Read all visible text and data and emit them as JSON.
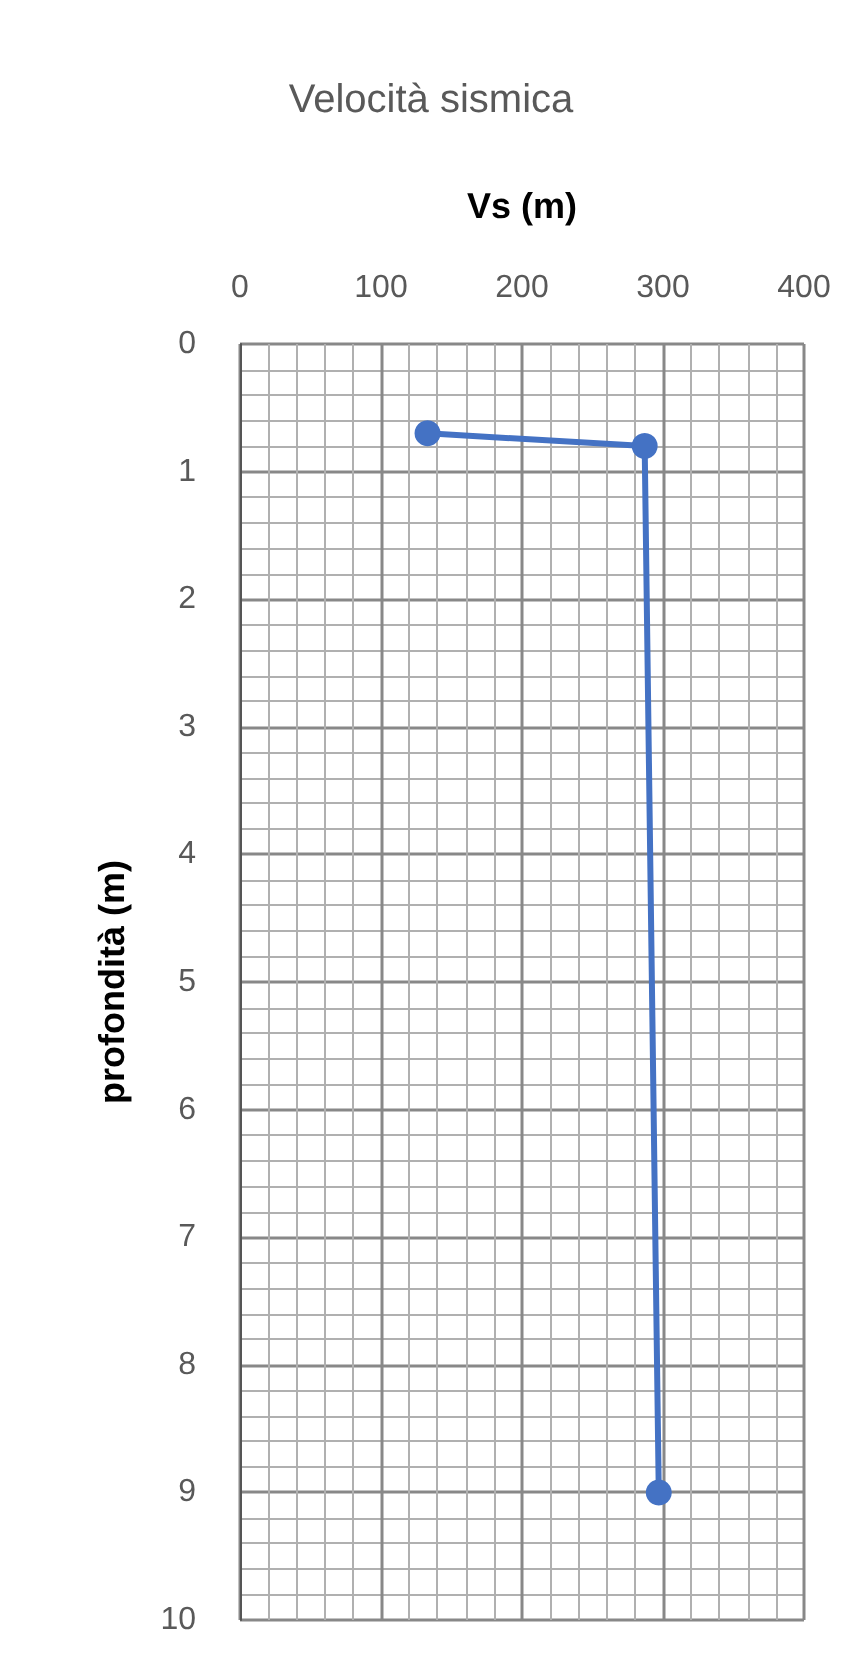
{
  "chart_data": {
    "type": "line",
    "title": "Velocità sismica",
    "xlabel": "Vs (m)",
    "ylabel": "profondità (m)",
    "x": [
      133,
      287,
      297
    ],
    "series": [
      {
        "color": "#4472c4",
        "values": [
          0.7,
          0.8,
          9
        ]
      }
    ],
    "xlim": [
      0,
      400
    ],
    "xticks": [
      0,
      100,
      200,
      300,
      400
    ],
    "ylim": [
      10,
      0
    ],
    "yticks": [
      0,
      1,
      2,
      3,
      4,
      5,
      6,
      7,
      8,
      9,
      10
    ],
    "grid": true,
    "marker": "circle",
    "line_style": "solid"
  }
}
